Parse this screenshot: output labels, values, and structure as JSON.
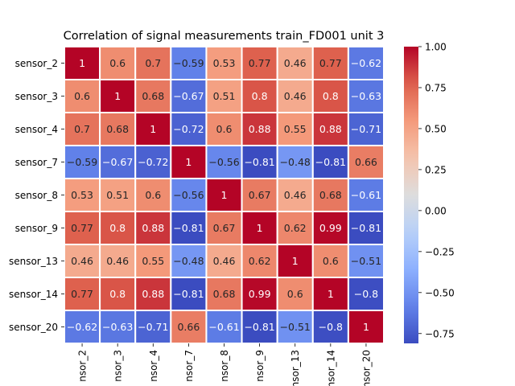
{
  "chart_data": {
    "type": "heatmap",
    "title": "Correlation of signal measurements train_FD001 unit 3",
    "xlabel": "",
    "ylabel": "",
    "labels": [
      "sensor_2",
      "sensor_3",
      "sensor_4",
      "sensor_7",
      "sensor_8",
      "sensor_9",
      "sensor_13",
      "sensor_14",
      "sensor_20"
    ],
    "x_tick_labels": [
      "nsor_2",
      "nsor_3",
      "nsor_4",
      "nsor_7",
      "nsor_8",
      "nsor_9",
      "nsor_13",
      "nsor_14",
      "nsor_20"
    ],
    "values": [
      [
        1,
        0.6,
        0.7,
        -0.59,
        0.53,
        0.77,
        0.46,
        0.77,
        -0.62
      ],
      [
        0.6,
        1,
        0.68,
        -0.67,
        0.51,
        0.8,
        0.46,
        0.8,
        -0.63
      ],
      [
        0.7,
        0.68,
        1,
        -0.72,
        0.6,
        0.88,
        0.55,
        0.88,
        -0.71
      ],
      [
        -0.59,
        -0.67,
        -0.72,
        1,
        -0.56,
        -0.81,
        -0.48,
        -0.81,
        0.66
      ],
      [
        0.53,
        0.51,
        0.6,
        -0.56,
        1,
        0.67,
        0.46,
        0.68,
        -0.61
      ],
      [
        0.77,
        0.8,
        0.88,
        -0.81,
        0.67,
        1,
        0.62,
        0.99,
        -0.81
      ],
      [
        0.46,
        0.46,
        0.55,
        -0.48,
        0.46,
        0.62,
        1,
        0.6,
        -0.51
      ],
      [
        0.77,
        0.8,
        0.88,
        -0.81,
        0.68,
        0.99,
        0.6,
        1,
        -0.8
      ],
      [
        -0.62,
        -0.63,
        -0.71,
        0.66,
        -0.61,
        -0.81,
        -0.51,
        -0.8,
        1
      ]
    ],
    "colormap": "coolwarm",
    "color_range": [
      -0.81,
      1
    ],
    "colorbar_ticks": [
      1.0,
      0.75,
      0.5,
      0.25,
      0.0,
      -0.25,
      -0.5,
      -0.75
    ],
    "colorbar_tick_labels": [
      "1.00",
      "0.75",
      "0.50",
      "0.25",
      "0.00",
      "−0.25",
      "−0.50",
      "−0.75"
    ],
    "cell_border_color": "#ffffff"
  }
}
